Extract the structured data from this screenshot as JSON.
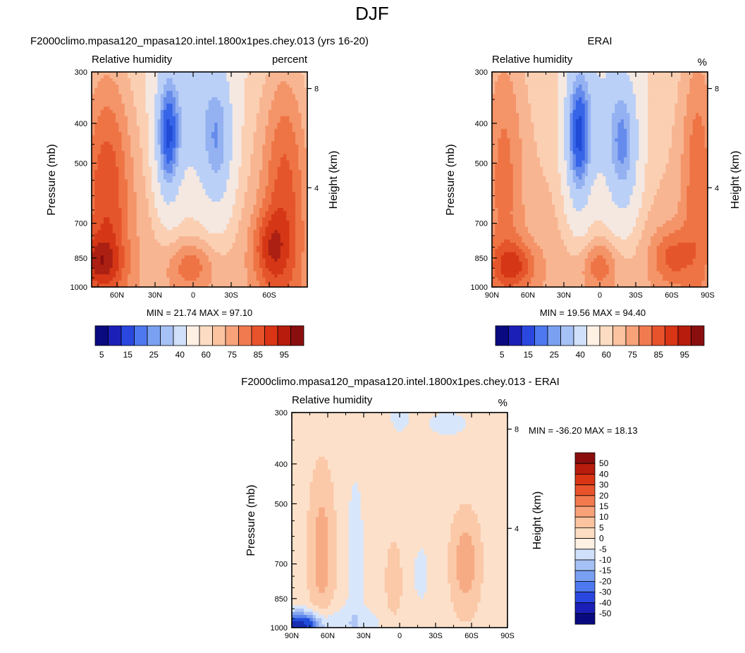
{
  "title": "DJF",
  "color_stops": {
    "blue_deep": "#0a0a80",
    "blue_mid": "#2456e6",
    "blue_light": "#9db9f2",
    "blue_pale": "#d8e6fb",
    "neutral": "#fde9d8",
    "red_pale": "#fbc9a8",
    "red_mid": "#f07a4a",
    "red_strong": "#dd3c17",
    "red_deep": "#8a0e0e"
  },
  "chart_data": [
    {
      "type": "heatmap",
      "title": "F2000climo.mpasa120_mpasa120.intel.1800x1pes.chey.013 (yrs 16-20)",
      "left_label": "Relative humidity",
      "right_label": "percent",
      "ylabel": "Pressure (mb)",
      "ylabel_right": "Height (km)",
      "x_ticks": [
        "60N",
        "30N",
        "0",
        "30S",
        "60S"
      ],
      "x_tick_values": [
        60,
        30,
        0,
        -30,
        -60
      ],
      "x_range": [
        80,
        -90
      ],
      "y_ticks": [
        "300",
        "400",
        "500",
        "700",
        "850",
        "1000"
      ],
      "y_tick_values": [
        300,
        400,
        500,
        700,
        850,
        1000
      ],
      "y_range": [
        300,
        1000
      ],
      "height_ticks": [
        "8",
        "4"
      ],
      "height_tick_values": [
        8,
        4
      ],
      "min_max": "MIN =  21.74  MAX =  97.10",
      "value_range": [
        21.74,
        97.1
      ],
      "field": "rh_model"
    },
    {
      "type": "heatmap",
      "title": "ERAI",
      "left_label": "Relative humidity",
      "right_label": "%",
      "ylabel": "Pressure (mb)",
      "ylabel_right": "Height (km)",
      "x_ticks": [
        "90N",
        "60N",
        "30N",
        "0",
        "30S",
        "60S",
        "90S"
      ],
      "x_tick_values": [
        90,
        60,
        30,
        0,
        -30,
        -60,
        -90
      ],
      "x_range": [
        90,
        -90
      ],
      "y_ticks": [
        "300",
        "400",
        "500",
        "700",
        "850",
        "1000"
      ],
      "y_tick_values": [
        300,
        400,
        500,
        700,
        850,
        1000
      ],
      "y_range": [
        300,
        1000
      ],
      "height_ticks": [
        "8",
        "4"
      ],
      "height_tick_values": [
        8,
        4
      ],
      "min_max": "MIN =  19.56  MAX =  94.40",
      "value_range": [
        19.56,
        94.4
      ],
      "field": "rh_erai"
    },
    {
      "type": "heatmap",
      "title": "F2000climo.mpasa120_mpasa120.intel.1800x1pes.chey.013 - ERAI",
      "left_label": "Relative humidity",
      "right_label": "%",
      "ylabel": "Pressure (mb)",
      "ylabel_right": "Height (km)",
      "x_ticks": [
        "90N",
        "60N",
        "30N",
        "0",
        "30S",
        "60S",
        "90S"
      ],
      "x_tick_values": [
        90,
        60,
        30,
        0,
        -30,
        -60,
        -90
      ],
      "x_range": [
        90,
        -90
      ],
      "y_ticks": [
        "300",
        "400",
        "500",
        "700",
        "850",
        "1000"
      ],
      "y_tick_values": [
        300,
        400,
        500,
        700,
        850,
        1000
      ],
      "y_range": [
        300,
        1000
      ],
      "height_ticks": [
        "8",
        "4"
      ],
      "height_tick_values": [
        8,
        4
      ],
      "min_max": "MIN = -36.20  MAX =  18.13",
      "value_range": [
        -36.2,
        18.13
      ],
      "field": "rh_diff"
    }
  ],
  "colorbars": {
    "rh": {
      "labels": [
        "5",
        "15",
        "25",
        "40",
        "60",
        "75",
        "85",
        "95"
      ],
      "label_after_box": [
        0,
        2,
        4,
        6,
        8,
        10,
        12,
        14
      ],
      "colors": [
        "#0a0a80",
        "#1b1fb8",
        "#2a48e0",
        "#4d78ef",
        "#7aa0f2",
        "#a6c1f5",
        "#d0e0fa",
        "#fff0e4",
        "#fcdcc2",
        "#fbc39f",
        "#f8a27a",
        "#f27a4f",
        "#e8532b",
        "#d93515",
        "#b71c0c",
        "#8a0e0e"
      ]
    },
    "diff": {
      "labels": [
        "50",
        "40",
        "30",
        "20",
        "15",
        "10",
        "5",
        "0",
        "-5",
        "-10",
        "-15",
        "-20",
        "-30",
        "-40",
        "-50"
      ],
      "colors": [
        "#8a0e0e",
        "#b71c0c",
        "#d93515",
        "#e8532b",
        "#f27a4f",
        "#f8a27a",
        "#fbc39f",
        "#fcdcc2",
        "#fff0e4",
        "#d0e0fa",
        "#a6c1f5",
        "#7aa0f2",
        "#4d78ef",
        "#2a48e0",
        "#1b1fb8",
        "#0a0a80"
      ]
    }
  }
}
